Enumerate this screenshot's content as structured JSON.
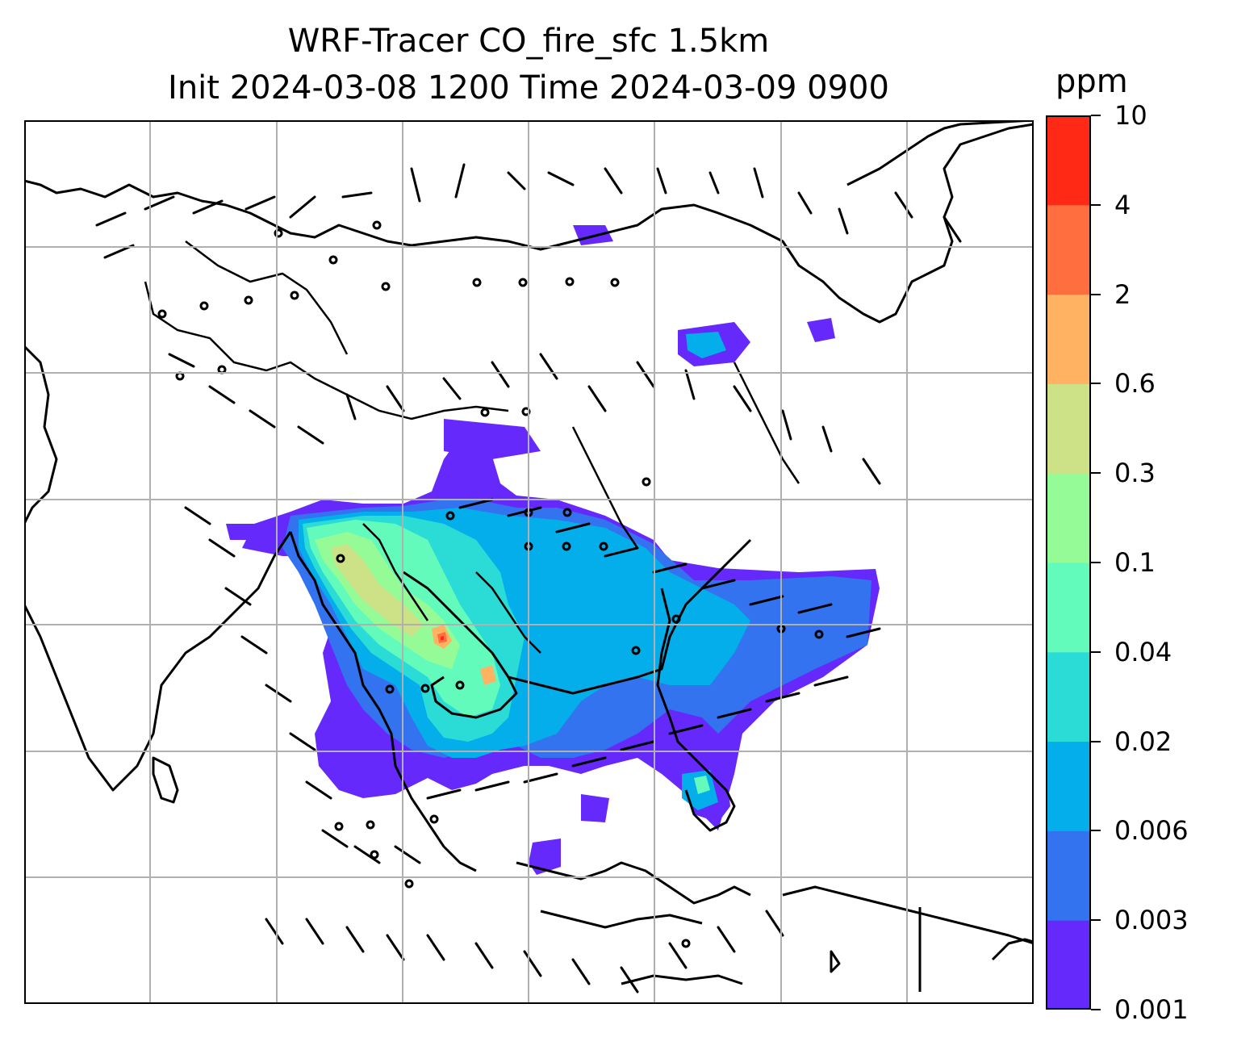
{
  "title": {
    "line1": "WRF-Tracer CO_fire_sfc 1.5km",
    "line2": "Init 2024-03-08 1200 Time 2024-03-09 0900"
  },
  "colorbar": {
    "unit": "ppm",
    "levels": [
      "0.001",
      "0.003",
      "0.006",
      "0.02",
      "0.04",
      "0.1",
      "0.3",
      "0.6",
      "2",
      "4",
      "10"
    ],
    "colors": [
      "#6629fb",
      "#3473f0",
      "#03aeea",
      "#2bdcd6",
      "#63fbbb",
      "#95fb96",
      "#cde186",
      "#ffb261",
      "#ff6e3e",
      "#ff2916"
    ]
  },
  "chart_data": {
    "type": "heatmap",
    "title": "WRF-Tracer CO_fire_sfc 1.5km Init 2024-03-08 1200 Time 2024-03-09 0900",
    "variable": "CO_fire_sfc",
    "level": "1.5km",
    "init_time": "2024-03-08 1200",
    "valid_time": "2024-03-09 0900",
    "units": "ppm",
    "contour_levels": [
      0.001,
      0.003,
      0.006,
      0.02,
      0.04,
      0.1,
      0.3,
      0.6,
      2,
      4,
      10
    ],
    "colormap": "rainbow",
    "overlays": [
      "coastlines",
      "country borders",
      "wind barbs"
    ],
    "grid": true,
    "legend": "colorbar right"
  }
}
